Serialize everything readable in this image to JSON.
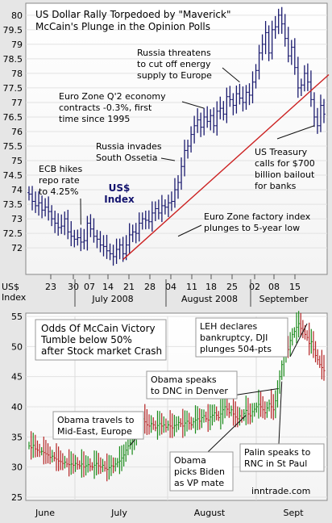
{
  "chart_data": [
    {
      "type": "bar",
      "subtype": "ohlc",
      "title_lines": [
        "US Dollar Rally Torpedoed by \"Maverick\"",
        "McCain's Plunge in the Opinion Polls"
      ],
      "series_label_lines": [
        "US$",
        "Index"
      ],
      "y_axis_label_lines": [
        "US$",
        "Index"
      ],
      "ylim": [
        71.2,
        80.3
      ],
      "yticks": [
        "72",
        "72.5",
        "73",
        "73.5",
        "74",
        "74.5",
        "75",
        "75.5",
        "76",
        "76.5",
        "77",
        "77.5",
        "78",
        "78.5",
        "79",
        "79.5",
        "80"
      ],
      "x_day_ticks": [
        "23",
        "30",
        "07",
        "14",
        "21",
        "28",
        "04",
        "11",
        "18",
        "25",
        "02",
        "08",
        "15"
      ],
      "x_month_labels": [
        "July 2008",
        "August 2008",
        "September"
      ],
      "close": [
        73.85,
        73.6,
        73.45,
        73.55,
        73.3,
        73.4,
        73.25,
        73.0,
        72.85,
        72.7,
        72.75,
        73.0,
        72.55,
        72.4,
        72.3,
        72.35,
        72.2,
        72.25,
        72.85,
        72.65,
        72.4,
        72.3,
        72.1,
        72.05,
        71.9,
        71.8,
        71.7,
        71.95,
        72.1,
        71.8,
        72.1,
        72.45,
        72.55,
        72.5,
        72.85,
        73.0,
        72.95,
        72.9,
        73.2,
        73.35,
        73.2,
        73.45,
        73.4,
        73.55,
        73.6,
        74.0,
        74.25,
        74.8,
        75.35,
        75.5,
        75.9,
        76.2,
        76.4,
        76.15,
        76.5,
        76.35,
        76.55,
        76.2,
        76.7,
        76.8,
        76.6,
        77.2,
        77.1,
        76.9,
        77.3,
        77.15,
        77.0,
        77.35,
        77.25,
        77.7,
        78.1,
        78.7,
        79.0,
        79.4,
        78.7,
        79.5,
        79.6,
        80.0,
        79.7,
        79.2,
        78.6,
        78.9,
        78.2,
        77.5,
        77.6,
        78.0,
        77.7,
        77.1,
        76.5,
        76.2,
        76.9,
        76.6
      ],
      "trendline": {
        "start_index": 29,
        "start_value": 71.6,
        "end_index": 91,
        "end_value": 77.9,
        "color": "#cc2222"
      },
      "annotations": [
        {
          "lines": [
            "ECB hikes",
            "repo rate",
            "to 4.25%"
          ],
          "pointer_index": 16,
          "pointer_value": 72.8
        },
        {
          "lines": [
            "Russia invades",
            "South Ossetia"
          ],
          "pointer_index": 45,
          "pointer_value": 75.0
        },
        {
          "lines": [
            "Euro Zone Q'2 economy",
            "contracts -0.3%, first",
            "time since 1995"
          ],
          "pointer_index": 54,
          "pointer_value": 76.8
        },
        {
          "lines": [
            "Russia threatens",
            "to cut off energy",
            "supply to Europe"
          ],
          "pointer_index": 65,
          "pointer_value": 77.7
        },
        {
          "lines": [
            "US Treasury",
            "calls for $700",
            "billion bailout",
            "for banks"
          ],
          "pointer_index": 88,
          "pointer_value": 76.2
        },
        {
          "lines": [
            "Euro Zone factory index",
            "plunges to 5-year low"
          ],
          "pointer_index": 46,
          "pointer_value": 72.4
        }
      ]
    },
    {
      "type": "bar",
      "subtype": "ohlc",
      "title_lines": [
        "Odds Of McCain Victory",
        "Tumble below 50%",
        "after Stock market Crash"
      ],
      "title_color": "#cc0000",
      "source": "inntrade.com",
      "ylim": [
        25,
        55
      ],
      "yticks": [
        "25",
        "30",
        "35",
        "40",
        "45",
        "50",
        "55"
      ],
      "x_month_labels": [
        "June",
        "July",
        "August",
        "Sept"
      ],
      "close": [
        33.5,
        33.2,
        33.6,
        33.0,
        32.8,
        32.5,
        32.6,
        32.4,
        32.2,
        32.0,
        31.6,
        31.8,
        31.5,
        31.3,
        31.0,
        30.9,
        30.6,
        30.8,
        30.5,
        30.4,
        30.5,
        30.3,
        30.6,
        30.4,
        30.2,
        30.5,
        30.0,
        30.2,
        30.4,
        30.1,
        30.0,
        30.3,
        30.6,
        30.2,
        30.0,
        30.3,
        29.8,
        29.6,
        29.9,
        30.2,
        30.1,
        30.5,
        30.8,
        31.0,
        31.5,
        32.0,
        32.8,
        33.5,
        34.0,
        34.5,
        35.0,
        35.8,
        36.5,
        37.0,
        38.0,
        37.5,
        37.0,
        36.8,
        37.2,
        37.0,
        36.5,
        36.9,
        37.2,
        36.8,
        37.0,
        36.6,
        37.0,
        36.8,
        36.5,
        36.9,
        37.0,
        37.4,
        37.2,
        36.8,
        37.3,
        37.6,
        37.3,
        37.0,
        37.5,
        37.8,
        38.0,
        37.6,
        38.2,
        38.5,
        38.0,
        37.8,
        38.3,
        38.6,
        39.0,
        38.6,
        38.2,
        38.8,
        39.5,
        40.0,
        39.6,
        39.0,
        39.5,
        38.8,
        38.3,
        38.0,
        38.5,
        38.2,
        38.9,
        39.4,
        38.8,
        38.5,
        39.2,
        39.6,
        40.0,
        40.4,
        40.0,
        39.5,
        39.0,
        39.8,
        40.5,
        40.0,
        39.5,
        41.0,
        43.0,
        45.0,
        47.0,
        49.0,
        50.0,
        49.5,
        51.0,
        52.0,
        52.5,
        53.2,
        53.8,
        53.0,
        52.5,
        52.0,
        51.5,
        50.5,
        50.8,
        49.5,
        48.5,
        47.8,
        47.0,
        46.5,
        46.0
      ],
      "colors": {
        "up": "#1a8a1a",
        "down": "#b32222"
      },
      "annotations": [
        {
          "lines": [
            "Obama travels to",
            "Mid-East, Europe"
          ],
          "pointer_index": 48,
          "pointer_value": 33.6
        },
        {
          "lines": [
            "Obama speaks",
            "to DNC in Denver"
          ],
          "pointer_index": 118,
          "pointer_value": 43.0
        },
        {
          "lines": [
            "Obama",
            "picks Biden",
            "as VP mate"
          ],
          "pointer_index": 103,
          "pointer_value": 38.6
        },
        {
          "lines": [
            "LEH declares",
            "bankruptcy, DJI",
            "plunges 504-pts"
          ],
          "pointer_index": 132,
          "pointer_value": 53.8
        },
        {
          "lines": [
            "Palin speaks to",
            "RNC in St Paul"
          ],
          "pointer_index": 120,
          "pointer_value": 44.2
        }
      ]
    }
  ]
}
